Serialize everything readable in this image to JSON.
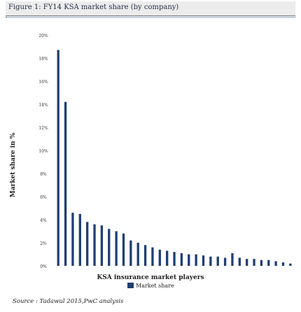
{
  "figure_title": "Figure 1: FY14 KSA market share (by company)",
  "source": "Source : Tadawul 2015,PwC analysis",
  "colors": {
    "bar": "#1f3f73",
    "text": "#222222"
  },
  "chart_data": {
    "type": "bar",
    "xlabel": "KSA insurance market players",
    "ylabel": "Market share in %",
    "yticks": [
      "20%",
      "18%",
      "16%",
      "14%",
      "12%",
      "10%",
      "8%",
      "6%",
      "4%",
      "2%",
      "0%"
    ],
    "ylim": [
      0,
      20
    ],
    "legend": [
      "Market share"
    ],
    "legend_position": "bottom",
    "grid": false,
    "values": [
      18.7,
      14.2,
      4.6,
      4.5,
      3.8,
      3.6,
      3.5,
      3.2,
      3.0,
      2.8,
      2.2,
      2.0,
      1.8,
      1.6,
      1.4,
      1.3,
      1.2,
      1.1,
      1.0,
      1.0,
      0.9,
      0.8,
      0.8,
      0.7,
      1.1,
      0.7,
      0.6,
      0.6,
      0.5,
      0.5,
      0.4,
      0.3,
      0.2
    ]
  }
}
